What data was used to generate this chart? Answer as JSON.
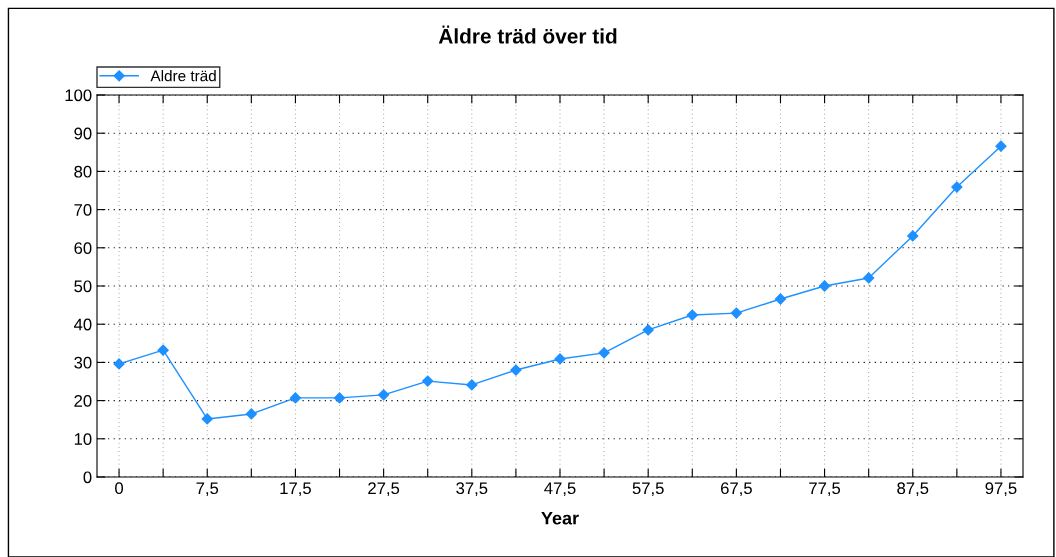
{
  "chart_data": {
    "type": "line",
    "title": "Äldre träd över tid",
    "xlabel": "Year",
    "categories": [
      "0",
      null,
      "7,5",
      null,
      "17,5",
      null,
      "27,5",
      null,
      "37,5",
      null,
      "47,5",
      null,
      "57,5",
      null,
      "67,5",
      null,
      "77,5",
      null,
      "87,5",
      null,
      "97,5"
    ],
    "series": [
      {
        "name": "Aldre träd",
        "color": "#1e90ff",
        "values": [
          29.6,
          33.2,
          15.2,
          16.5,
          20.7,
          20.7,
          21.5,
          25.1,
          24.1,
          28.0,
          30.9,
          32.5,
          38.5,
          42.4,
          42.9,
          46.6,
          50.0,
          52.1,
          63.1,
          75.9,
          86.6
        ]
      }
    ],
    "ylim": [
      0,
      100
    ],
    "yticks": [
      0,
      10,
      20,
      30,
      40,
      50,
      60,
      70,
      80,
      90,
      100
    ],
    "grid": true,
    "legend": "top left",
    "marker": "diamond",
    "line_style": "solid"
  }
}
